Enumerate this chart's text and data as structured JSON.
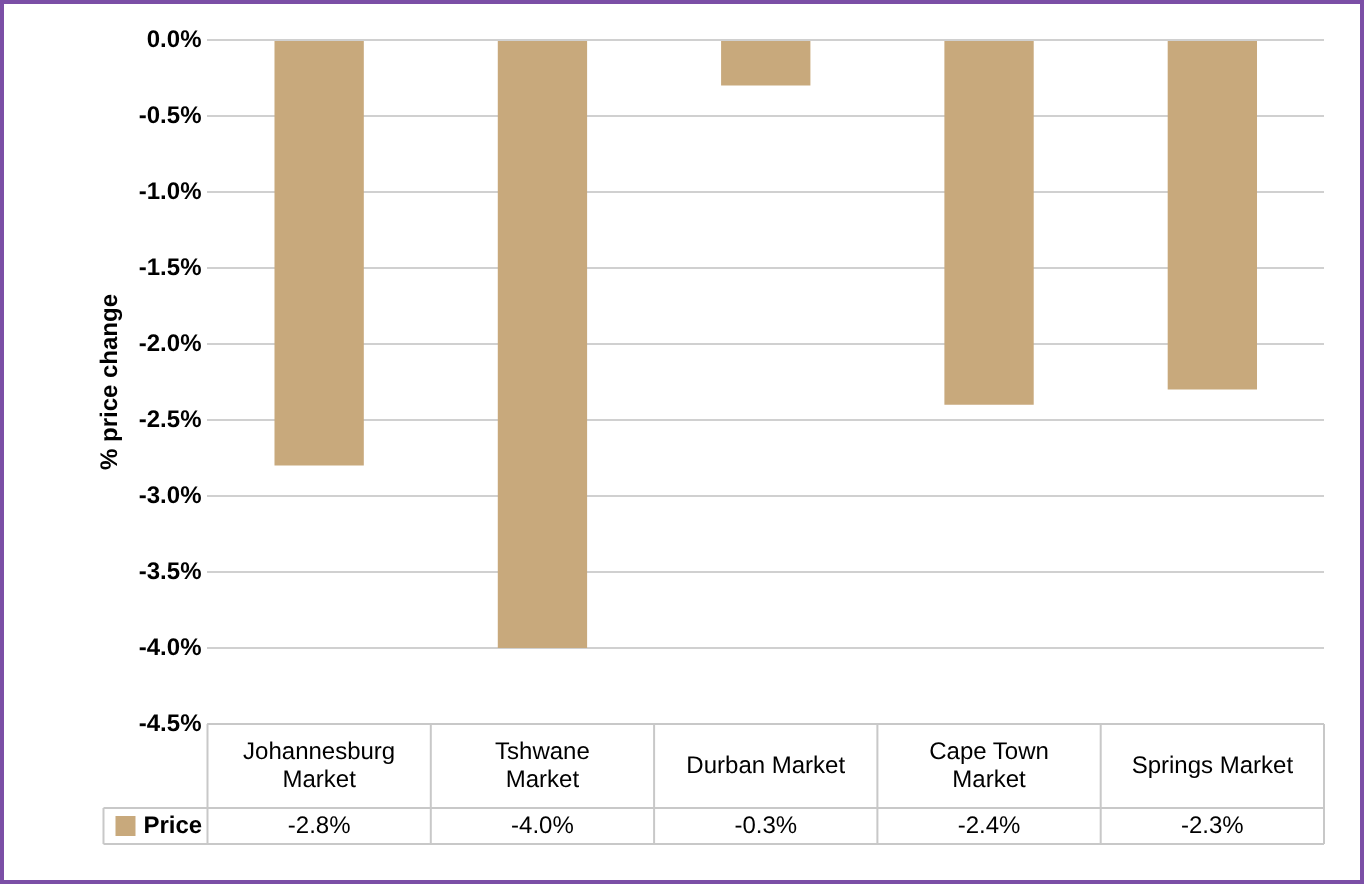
{
  "chart_data": {
    "type": "bar",
    "ylabel": "% price change",
    "categories": [
      "Johannesburg Market",
      "Tshwane Market",
      "Durban Market",
      "Cape Town Market",
      "Springs Market"
    ],
    "series": [
      {
        "name": "Price",
        "color": "#c8a97c",
        "values": [
          -2.8,
          -4.0,
          -0.3,
          -2.4,
          -2.3
        ]
      }
    ],
    "ylim": [
      -4.5,
      0
    ],
    "yticks": [
      {
        "value": -4.5,
        "label": "-4.5%"
      },
      {
        "value": -4,
        "label": "-4.0%"
      },
      {
        "value": -3.5,
        "label": "-3.5%"
      },
      {
        "value": -3,
        "label": "-3.0%"
      },
      {
        "value": -2.5,
        "label": "-2.5%"
      },
      {
        "value": -2,
        "label": "-2.0%"
      },
      {
        "value": -1.5,
        "label": "-1.5%"
      },
      {
        "value": -1,
        "label": "-1.0%"
      },
      {
        "value": -0.5,
        "label": "-0.5%"
      },
      {
        "value": 0,
        "label": "0.0%"
      }
    ],
    "value_labels": [
      "-2.8%",
      "-4.0%",
      "-0.3%",
      "-2.4%",
      "-2.3%"
    ],
    "grid": "y",
    "legend": "bottom"
  }
}
